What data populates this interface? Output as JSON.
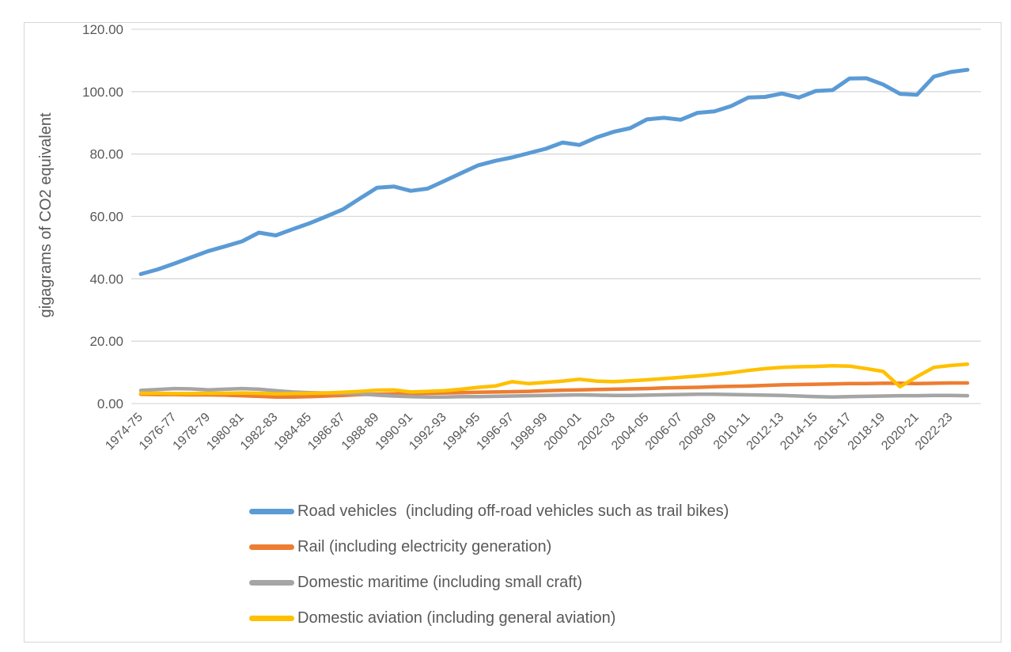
{
  "chart_data": {
    "type": "line",
    "ylabel": "gigagrams of CO2 equivalent",
    "ylim": [
      0,
      120
    ],
    "ytick_interval": 20,
    "ytick_labels": [
      "0.00",
      "20.00",
      "40.00",
      "60.00",
      "80.00",
      "100.00",
      "120.00"
    ],
    "grid": "horizontal",
    "grid_color": "#d9d9d9",
    "axis_text_color": "#595959",
    "legend_position": "bottom-left",
    "x_categories": [
      "1974-75",
      "1975-76",
      "1976-77",
      "1977-78",
      "1978-79",
      "1979-80",
      "1980-81",
      "1981-82",
      "1982-83",
      "1983-84",
      "1984-85",
      "1985-86",
      "1986-87",
      "1987-88",
      "1988-89",
      "1989-90",
      "1990-91",
      "1991-92",
      "1992-93",
      "1993-94",
      "1994-95",
      "1995-96",
      "1996-97",
      "1997-98",
      "1998-99",
      "1999-00",
      "2000-01",
      "2001-02",
      "2002-03",
      "2003-04",
      "2004-05",
      "2005-06",
      "2006-07",
      "2007-08",
      "2008-09",
      "2009-10",
      "2010-11",
      "2011-12",
      "2012-13",
      "2013-14",
      "2014-15",
      "2015-16",
      "2016-17",
      "2017-18",
      "2018-19",
      "2019-20",
      "2020-21",
      "2021-22",
      "2022-23",
      "2023-24"
    ],
    "xtick_labels": [
      "1974-75",
      "1976-77",
      "1978-79",
      "1980-81",
      "1982-83",
      "1984-85",
      "1986-87",
      "1988-89",
      "1990-91",
      "1992-93",
      "1994-95",
      "1996-97",
      "1998-99",
      "2000-01",
      "2002-03",
      "2004-05",
      "2006-07",
      "2008-09",
      "2010-11",
      "2012-13",
      "2014-15",
      "2016-17",
      "2018-19",
      "2020-21",
      "2022-23"
    ],
    "series": [
      {
        "id": "road-vehicles",
        "name": "Road vehicles  (including off-road vehicles such as trail bikes)",
        "color": "#5b9bd5",
        "line_width": 5,
        "values": [
          41.5,
          43.0,
          44.9,
          46.9,
          48.9,
          50.4,
          52.0,
          54.8,
          53.9,
          55.9,
          57.8,
          60.0,
          62.3,
          65.8,
          69.2,
          69.6,
          68.2,
          68.9,
          71.4,
          73.9,
          76.4,
          77.8,
          78.9,
          80.3,
          81.7,
          83.7,
          82.9,
          85.3,
          87.1,
          88.3,
          91.1,
          91.6,
          91.0,
          93.2,
          93.7,
          95.4,
          98.1,
          98.3,
          99.4,
          98.1,
          100.2,
          100.5,
          104.2,
          104.3,
          102.3,
          99.3,
          99.0,
          104.8,
          106.3,
          107.0
        ]
      },
      {
        "id": "rail",
        "name": "Rail (including electricity generation)",
        "color": "#ed7d31",
        "line_width": 4.5,
        "values": [
          3.0,
          2.9,
          2.9,
          2.8,
          2.8,
          2.7,
          2.5,
          2.3,
          2.1,
          2.1,
          2.2,
          2.4,
          2.6,
          2.9,
          3.0,
          3.1,
          3.2,
          3.3,
          3.4,
          3.5,
          3.6,
          3.7,
          3.8,
          3.9,
          4.1,
          4.3,
          4.4,
          4.5,
          4.6,
          4.7,
          4.8,
          5.0,
          5.1,
          5.2,
          5.4,
          5.5,
          5.6,
          5.8,
          6.0,
          6.1,
          6.2,
          6.3,
          6.4,
          6.4,
          6.5,
          6.5,
          6.4,
          6.5,
          6.6,
          6.6
        ]
      },
      {
        "id": "domestic-maritime",
        "name": "Domestic maritime (including small craft)",
        "color": "#a5a5a5",
        "line_width": 4.5,
        "values": [
          4.2,
          4.5,
          4.8,
          4.7,
          4.4,
          4.6,
          4.8,
          4.6,
          4.1,
          3.7,
          3.5,
          3.4,
          3.3,
          3.1,
          2.7,
          2.4,
          2.2,
          2.1,
          2.1,
          2.2,
          2.2,
          2.3,
          2.4,
          2.5,
          2.6,
          2.7,
          2.8,
          2.7,
          2.6,
          2.6,
          2.7,
          2.8,
          2.9,
          3.0,
          3.0,
          2.9,
          2.8,
          2.7,
          2.6,
          2.4,
          2.2,
          2.1,
          2.2,
          2.3,
          2.4,
          2.5,
          2.5,
          2.6,
          2.6,
          2.5
        ]
      },
      {
        "id": "domestic-aviation",
        "name": "Domestic aviation (including general aviation)",
        "color": "#ffc000",
        "line_width": 4.5,
        "values": [
          3.3,
          3.3,
          3.2,
          3.2,
          3.3,
          3.3,
          3.4,
          3.3,
          3.1,
          3.2,
          3.3,
          3.4,
          3.6,
          3.9,
          4.3,
          4.4,
          3.7,
          3.9,
          4.1,
          4.6,
          5.2,
          5.6,
          7.0,
          6.4,
          6.8,
          7.2,
          7.8,
          7.2,
          7.0,
          7.3,
          7.6,
          8.0,
          8.4,
          8.8,
          9.3,
          9.9,
          10.6,
          11.2,
          11.6,
          11.8,
          11.9,
          12.1,
          12.0,
          11.2,
          10.3,
          5.4,
          8.6,
          11.6,
          12.2,
          12.6
        ]
      }
    ]
  }
}
